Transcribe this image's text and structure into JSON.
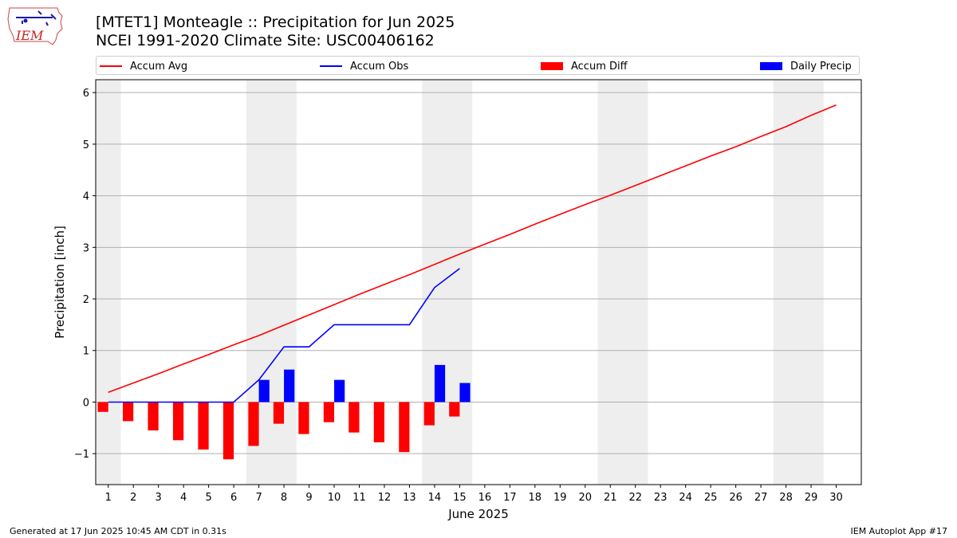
{
  "header": {
    "logo_text": "IEM",
    "title_line1": "[MTET1] Monteagle :: Precipitation for Jun 2025",
    "title_line2": "NCEI 1991-2020 Climate Site: USC00406162"
  },
  "legend": {
    "items": [
      {
        "label": "Accum Avg",
        "kind": "line",
        "color": "#ff0000"
      },
      {
        "label": "Accum Obs",
        "kind": "line",
        "color": "#0000ff"
      },
      {
        "label": "Accum Diff",
        "kind": "box",
        "color": "#ff0000"
      },
      {
        "label": "Daily Precip",
        "kind": "box",
        "color": "#0000ff"
      }
    ]
  },
  "footer": {
    "left": "Generated at 17 Jun 2025 10:45 AM CDT in 0.31s",
    "right": "IEM Autoplot App #17"
  },
  "chart_data": {
    "type": "bar",
    "title": "[MTET1] Monteagle :: Precipitation for Jun 2025",
    "subtitle": "NCEI 1991-2020 Climate Site: USC00406162",
    "xlabel": "June 2025",
    "ylabel": "Precipitation [inch]",
    "ylim": [
      -1.6,
      6.25
    ],
    "xlim": [
      0.5,
      31.0
    ],
    "yticks": [
      -1,
      0,
      1,
      2,
      3,
      4,
      5,
      6
    ],
    "ytick_labels": [
      "−1",
      "0",
      "1",
      "2",
      "3",
      "4",
      "5",
      "6"
    ],
    "grid": "horizontal",
    "legend_position": "top",
    "weekend_shading": [
      [
        0.5,
        1.5
      ],
      [
        6.5,
        8.5
      ],
      [
        13.5,
        15.5
      ],
      [
        20.5,
        22.5
      ],
      [
        27.5,
        29.5
      ]
    ],
    "categories": [
      "1",
      "2",
      "3",
      "4",
      "5",
      "6",
      "7",
      "8",
      "9",
      "10",
      "11",
      "12",
      "13",
      "14",
      "15",
      "16",
      "17",
      "18",
      "19",
      "20",
      "21",
      "22",
      "23",
      "24",
      "25",
      "26",
      "27",
      "28",
      "29",
      "30"
    ],
    "series": [
      {
        "name": "Accum Avg",
        "kind": "line",
        "color": "#ff0000",
        "x": [
          1,
          2,
          3,
          4,
          5,
          6,
          7,
          8,
          9,
          10,
          11,
          12,
          13,
          14,
          15,
          16,
          17,
          18,
          19,
          20,
          21,
          22,
          23,
          24,
          25,
          26,
          27,
          28,
          29,
          30
        ],
        "values": [
          0.19,
          0.37,
          0.55,
          0.74,
          0.92,
          1.11,
          1.29,
          1.49,
          1.69,
          1.89,
          2.09,
          2.28,
          2.47,
          2.67,
          2.87,
          3.06,
          3.25,
          3.45,
          3.64,
          3.83,
          4.01,
          4.2,
          4.39,
          4.58,
          4.77,
          4.95,
          5.15,
          5.34,
          5.56,
          5.76
        ]
      },
      {
        "name": "Accum Obs",
        "kind": "line",
        "color": "#0000ff",
        "x": [
          1,
          2,
          3,
          4,
          5,
          6,
          7,
          8,
          9,
          10,
          11,
          12,
          13,
          14,
          15
        ],
        "values": [
          0,
          0,
          0,
          0,
          0,
          0,
          0.43,
          1.07,
          1.07,
          1.5,
          1.5,
          1.5,
          1.5,
          2.22,
          2.59
        ]
      },
      {
        "name": "Accum Diff",
        "kind": "bar",
        "color": "#ff0000",
        "x": [
          1,
          2,
          3,
          4,
          5,
          6,
          7,
          8,
          9,
          10,
          11,
          12,
          13,
          14,
          15
        ],
        "values": [
          -0.19,
          -0.37,
          -0.55,
          -0.74,
          -0.92,
          -1.11,
          -0.85,
          -0.42,
          -0.62,
          -0.39,
          -0.59,
          -0.78,
          -0.97,
          -0.45,
          -0.28
        ]
      },
      {
        "name": "Daily Precip",
        "kind": "bar",
        "color": "#0000ff",
        "x": [
          7,
          8,
          10,
          14,
          15
        ],
        "values": [
          0.43,
          0.63,
          0.43,
          0.72,
          0.37
        ]
      }
    ]
  }
}
